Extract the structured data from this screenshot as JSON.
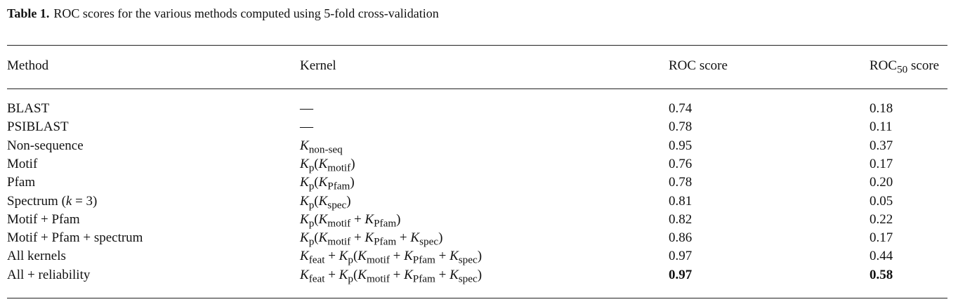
{
  "caption": {
    "label": "Table 1.",
    "text": "ROC scores for the various methods computed using 5-fold cross-validation"
  },
  "table": {
    "headers": {
      "method": "Method",
      "kernel": "Kernel",
      "roc": "ROC score",
      "roc50_main": "ROC",
      "roc50_sub": "50",
      "roc50_tail": " score"
    },
    "rows": [
      {
        "method": "BLAST",
        "kernel": "—",
        "roc": "0.74",
        "roc50": "0.18"
      },
      {
        "method": "PSIBLAST",
        "kernel": "—",
        "roc": "0.78",
        "roc50": "0.11"
      },
      {
        "method": "Non-sequence",
        "kernel": "K_non-seq",
        "roc": "0.95",
        "roc50": "0.37"
      },
      {
        "method": "Motif",
        "kernel": "K_p(K_motif)",
        "roc": "0.76",
        "roc50": "0.17"
      },
      {
        "method": "Pfam",
        "kernel": "K_p(K_Pfam)",
        "roc": "0.78",
        "roc50": "0.20"
      },
      {
        "method": "Spectrum (k = 3)",
        "kernel": "K_p(K_spec)",
        "roc": "0.81",
        "roc50": "0.05"
      },
      {
        "method": "Motif + Pfam",
        "kernel": "K_p(K_motif + K_Pfam)",
        "roc": "0.82",
        "roc50": "0.22"
      },
      {
        "method": "Motif + Pfam + spectrum",
        "kernel": "K_p(K_motif + K_Pfam + K_spec)",
        "roc": "0.86",
        "roc50": "0.17"
      },
      {
        "method": "All kernels",
        "kernel": "K_feat + K_p(K_motif + K_Pfam + K_spec)",
        "roc": "0.97",
        "roc50": "0.44"
      },
      {
        "method": "All + reliability",
        "kernel": "K_feat + K_p(K_motif + K_Pfam + K_spec)",
        "roc": "0.97",
        "roc50": "0.58",
        "bold": true
      }
    ]
  }
}
